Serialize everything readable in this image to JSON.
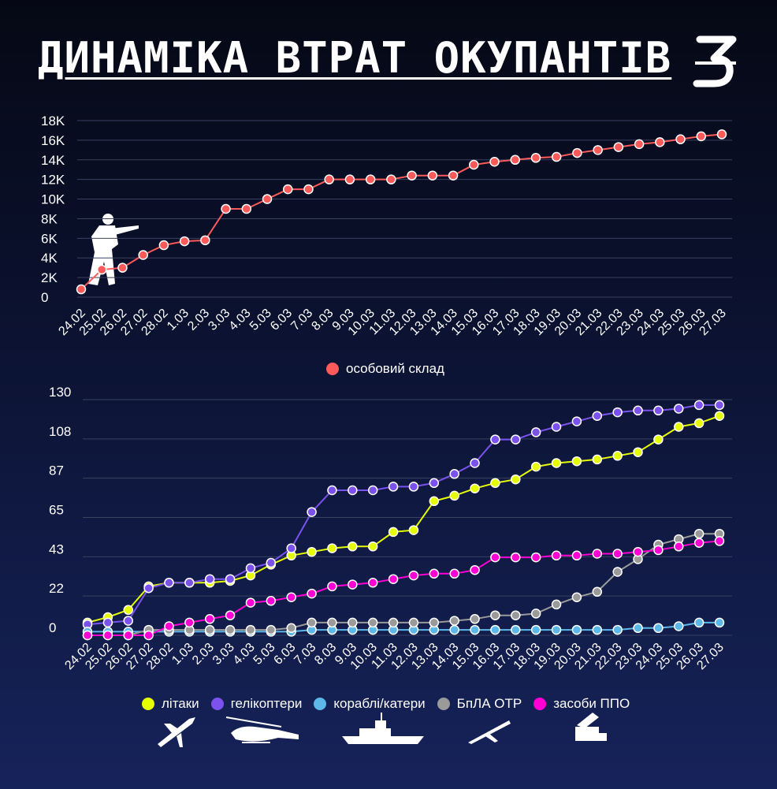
{
  "title": "ДИНАМІКА ВТРАТ ОКУПАНТІВ",
  "logo_text": "З",
  "chart_data": [
    {
      "type": "line",
      "categories": [
        "24.02",
        "25.02",
        "26.02",
        "27.02",
        "28.02",
        "1.03",
        "2.03",
        "3.03",
        "4.03",
        "5.03",
        "6.03",
        "7.03",
        "8.03",
        "9.03",
        "10.03",
        "11.03",
        "12.03",
        "13.03",
        "14.03",
        "15.03",
        "16.03",
        "17.03",
        "18.03",
        "19.03",
        "20.03",
        "21.03",
        "22.03",
        "23.03",
        "24.03",
        "25.03",
        "26.03",
        "27.03"
      ],
      "y_ticks": [
        "0",
        "2K",
        "4K",
        "6K",
        "8K",
        "10K",
        "12K",
        "14K",
        "16K",
        "18K"
      ],
      "ylim": [
        0,
        18000
      ],
      "grid": true,
      "legend_position": "bottom",
      "series": [
        {
          "name": "особовий склад",
          "color": "#ff5a5a",
          "values": [
            800,
            2800,
            3000,
            4300,
            5300,
            5700,
            5800,
            9000,
            9000,
            10000,
            11000,
            11000,
            12000,
            12000,
            12000,
            12000,
            12400,
            12400,
            12400,
            13500,
            13800,
            14000,
            14200,
            14300,
            14700,
            15000,
            15300,
            15600,
            15800,
            16100,
            16400,
            16600
          ]
        }
      ]
    },
    {
      "type": "line",
      "categories": [
        "24.02",
        "25.02",
        "26.02",
        "27.02",
        "28.02",
        "1.03",
        "2.03",
        "3.03",
        "4.03",
        "5.03",
        "6.03",
        "7.03",
        "8.03",
        "9.03",
        "10.03",
        "11.03",
        "12.03",
        "13.03",
        "14.03",
        "15.03",
        "16.03",
        "17.03",
        "18.03",
        "19.03",
        "20.03",
        "21.03",
        "22.03",
        "23.03",
        "24.03",
        "25.03",
        "26.03",
        "27.03"
      ],
      "y_ticks": [
        "0",
        "22",
        "43",
        "65",
        "87",
        "108",
        "130"
      ],
      "ylim": [
        0,
        130
      ],
      "grid": true,
      "legend_position": "bottom",
      "series": [
        {
          "name": "літаки",
          "color": "#e6ff00",
          "values": [
            7,
            10,
            14,
            27,
            29,
            29,
            29,
            30,
            33,
            39,
            44,
            46,
            48,
            49,
            49,
            57,
            58,
            74,
            77,
            81,
            84,
            86,
            93,
            95,
            96,
            97,
            99,
            101,
            108,
            115,
            117,
            121
          ]
        },
        {
          "name": "гелікоптери",
          "color": "#7b52ee",
          "values": [
            6,
            7,
            8,
            26,
            29,
            29,
            31,
            31,
            37,
            40,
            48,
            68,
            80,
            80,
            80,
            82,
            82,
            84,
            89,
            95,
            108,
            108,
            112,
            115,
            118,
            121,
            123,
            124,
            124,
            125,
            127,
            127
          ]
        },
        {
          "name": "кораблі/катери",
          "color": "#5bb8e8",
          "values": [
            2,
            2,
            2,
            2,
            2,
            2,
            2,
            2,
            2,
            2,
            2,
            3,
            3,
            3,
            3,
            3,
            3,
            3,
            3,
            3,
            3,
            3,
            3,
            3,
            3,
            3,
            3,
            4,
            4,
            5,
            7,
            7
          ]
        },
        {
          "name": "БпЛА ОТР",
          "color": "#9a9a9a",
          "values": [
            0,
            0,
            0,
            3,
            3,
            3,
            3,
            3,
            3,
            3,
            4,
            7,
            7,
            7,
            7,
            7,
            7,
            7,
            8,
            9,
            11,
            11,
            12,
            17,
            21,
            24,
            35,
            42,
            50,
            53,
            56,
            56
          ]
        },
        {
          "name": "засоби ППО",
          "color": "#ff00d4",
          "values": [
            0,
            0,
            0,
            0,
            5,
            7,
            9,
            11,
            18,
            19,
            21,
            23,
            27,
            28,
            29,
            31,
            33,
            34,
            34,
            36,
            43,
            43,
            43,
            44,
            44,
            45,
            45,
            46,
            47,
            49,
            51,
            52
          ]
        }
      ]
    }
  ]
}
